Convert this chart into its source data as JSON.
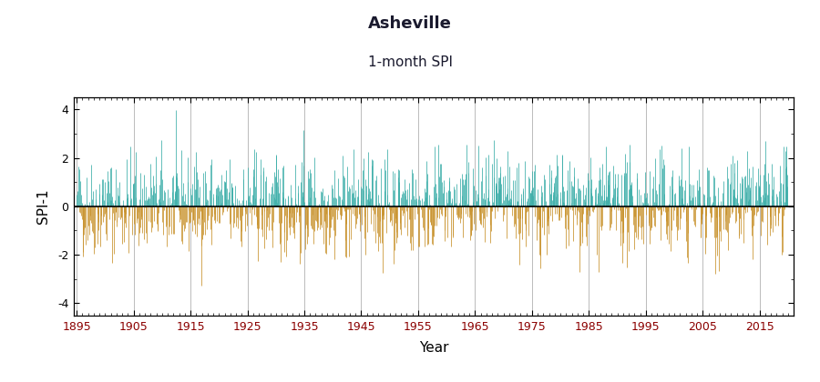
{
  "title": "Asheville",
  "subtitle": "1-month SPI",
  "xlabel": "Year",
  "ylabel": "SPI-1",
  "ylim": [
    -4.5,
    4.5
  ],
  "yticks": [
    -4,
    -2,
    0,
    2,
    4
  ],
  "year_start": 1895,
  "year_end": 2020,
  "months_per_year": 12,
  "xticks": [
    1895,
    1905,
    1915,
    1925,
    1935,
    1945,
    1955,
    1965,
    1975,
    1985,
    1995,
    2005,
    2015
  ],
  "color_positive": "#3aada8",
  "color_negative": "#c8912a",
  "color_zero_line": "#000000",
  "color_vgrid": "#bbbbbb",
  "color_title": "#1a1a2e",
  "background_color": "#ffffff",
  "title_fontsize": 13,
  "subtitle_fontsize": 11,
  "axis_label_fontsize": 11,
  "tick_label_fontsize": 9,
  "tick_color": "#8b0000",
  "seed": 42
}
